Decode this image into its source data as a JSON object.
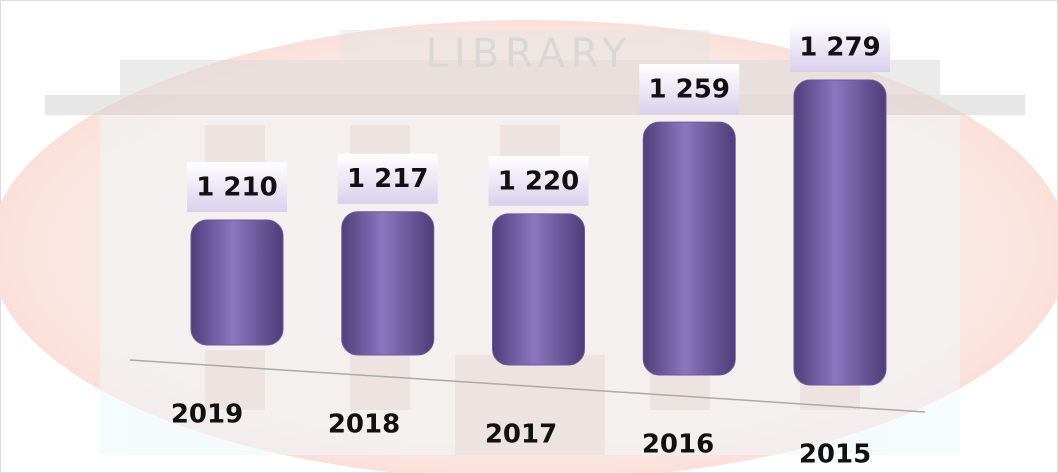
{
  "chart_data": {
    "type": "bar3d",
    "background_label": "LIBRARY",
    "categories": [
      "2019",
      "2018",
      "2017",
      "2016",
      "2015"
    ],
    "values": [
      1210,
      1217,
      1220,
      1259,
      1279
    ],
    "value_labels": [
      "1 210",
      "1 217",
      "1 220",
      "1 259",
      "1 279"
    ],
    "color": "#6a5997"
  }
}
